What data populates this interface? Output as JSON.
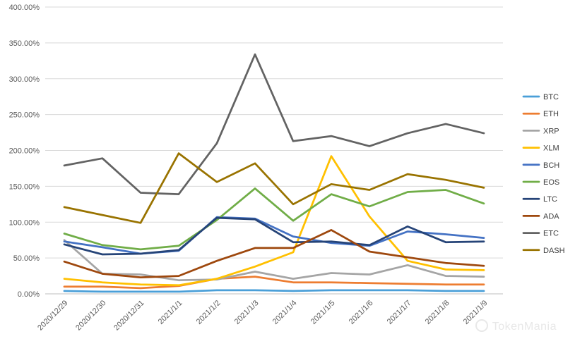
{
  "chart_data": {
    "type": "line",
    "title": "",
    "xlabel": "",
    "ylabel": "",
    "ylim": [
      0,
      400
    ],
    "y_ticks": [
      "0.00%",
      "50.00%",
      "100.00%",
      "150.00%",
      "200.00%",
      "250.00%",
      "300.00%",
      "350.00%",
      "400.00%"
    ],
    "categories": [
      "2020/12/29",
      "2020/12/30",
      "2020/12/31",
      "2021/1/1",
      "2021/1/2",
      "2021/1/3",
      "2021/1/4",
      "2021/1/5",
      "2021/1/6",
      "2021/1/7",
      "2021/1/8",
      "2021/1/9"
    ],
    "grid": true,
    "legend": "right",
    "series": [
      {
        "name": "BTC",
        "color": "#4a9fd8",
        "values": [
          4,
          3,
          3,
          3,
          5,
          5,
          4,
          5,
          5,
          5,
          4,
          4
        ]
      },
      {
        "name": "ETH",
        "color": "#ed7d31",
        "values": [
          10,
          10,
          8,
          11,
          21,
          24,
          16,
          16,
          15,
          14,
          13,
          13
        ]
      },
      {
        "name": "XRP",
        "color": "#a5a5a5",
        "values": [
          75,
          28,
          27,
          19,
          20,
          31,
          21,
          29,
          27,
          40,
          25,
          24
        ]
      },
      {
        "name": "XLM",
        "color": "#ffc000",
        "values": [
          21,
          16,
          13,
          12,
          21,
          38,
          58,
          192,
          108,
          46,
          34,
          33
        ]
      },
      {
        "name": "BCH",
        "color": "#4472c4",
        "values": [
          73,
          65,
          56,
          60,
          107,
          105,
          80,
          71,
          67,
          87,
          83,
          78
        ]
      },
      {
        "name": "EOS",
        "color": "#70ad47",
        "values": [
          84,
          68,
          62,
          67,
          103,
          147,
          102,
          139,
          122,
          142,
          145,
          126
        ]
      },
      {
        "name": "LTC",
        "color": "#264478",
        "values": [
          69,
          55,
          56,
          61,
          106,
          104,
          72,
          73,
          68,
          94,
          72,
          73
        ]
      },
      {
        "name": "ADA",
        "color": "#9e480e",
        "values": [
          45,
          28,
          23,
          25,
          46,
          64,
          64,
          89,
          59,
          51,
          43,
          39
        ]
      },
      {
        "name": "ETC",
        "color": "#636363",
        "values": [
          179,
          189,
          141,
          139,
          210,
          334,
          213,
          220,
          206,
          224,
          237,
          224
        ]
      },
      {
        "name": "DASH",
        "color": "#997300",
        "values": [
          121,
          110,
          99,
          196,
          156,
          182,
          125,
          153,
          145,
          167,
          159,
          148
        ]
      }
    ]
  },
  "watermark": {
    "icon": "wechat-icon",
    "text": "TokenMania"
  }
}
